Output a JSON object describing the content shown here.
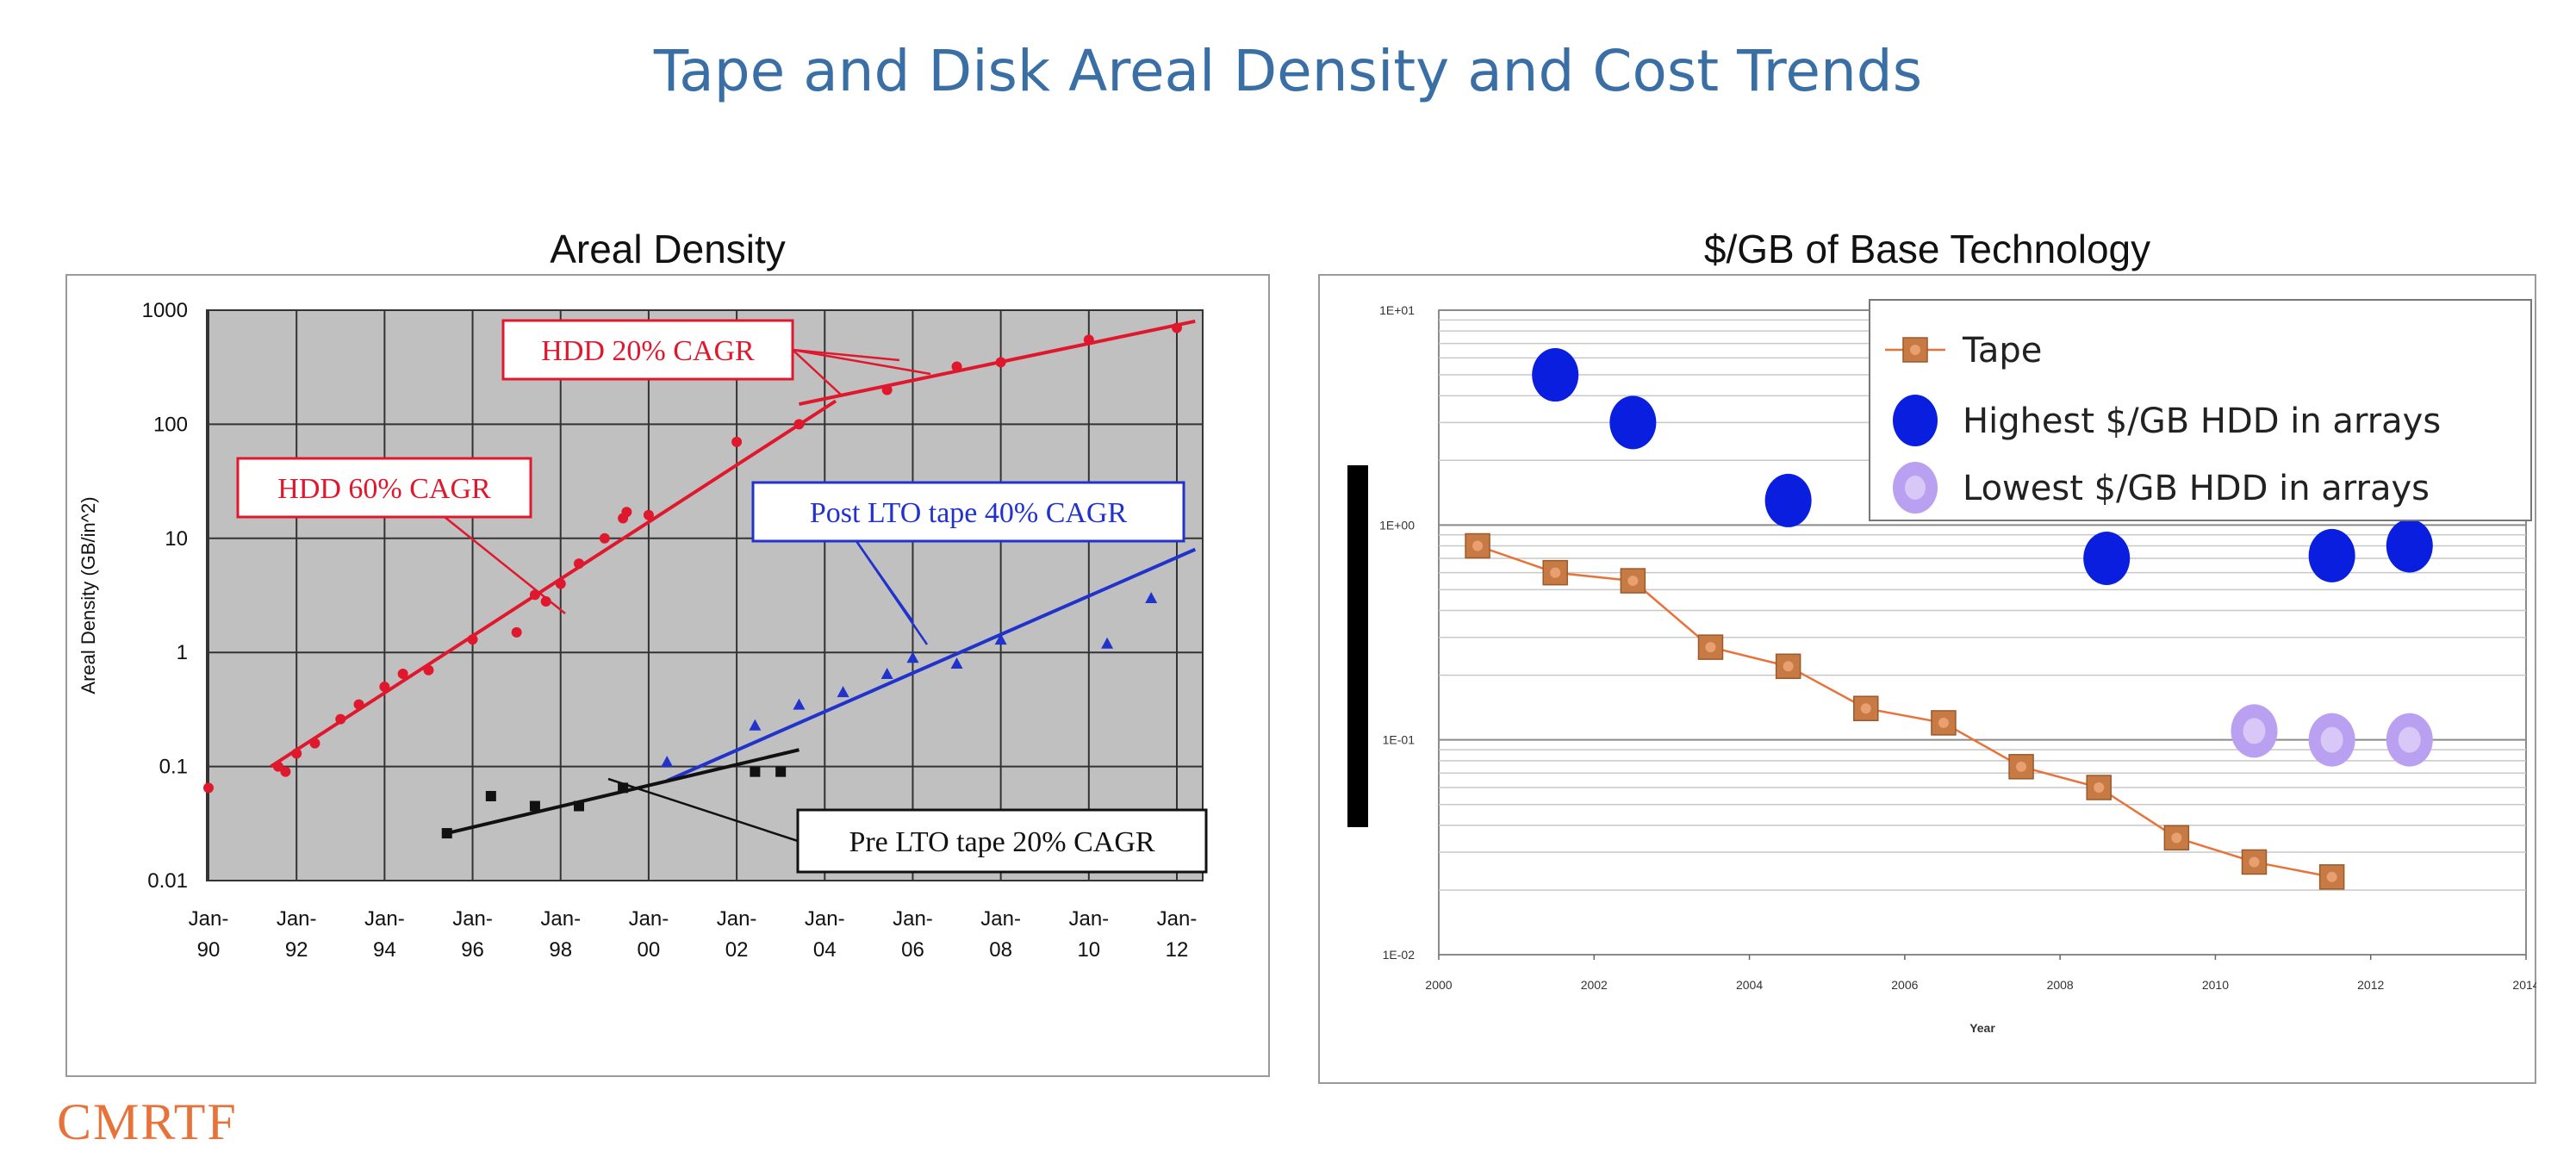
{
  "slide_title": "Tape and Disk Areal Density and Cost Trends",
  "footer_text": "CMRTF",
  "colors": {
    "title": "#3a6fa6",
    "hdd_red": "#e0182d",
    "post_lto_blue": "#2233cc",
    "pre_lto_black": "#111111",
    "tape_orange": "#e8733a",
    "highest_hdd": "#0a1ee0",
    "lowest_hdd": "#b9a0f0"
  },
  "chart_data": [
    {
      "type": "scatter",
      "title": "Areal Density",
      "xlabel": "",
      "ylabel": "Areal Density (GB/in^2)",
      "y_scale": "log",
      "ylim": [
        0.01,
        1000
      ],
      "y_ticks": [
        "0.01",
        "0.1",
        "1",
        "10",
        "100",
        "1000"
      ],
      "x_tick_labels": [
        [
          "Jan-",
          "90"
        ],
        [
          "Jan-",
          "92"
        ],
        [
          "Jan-",
          "94"
        ],
        [
          "Jan-",
          "96"
        ],
        [
          "Jan-",
          "98"
        ],
        [
          "Jan-",
          "00"
        ],
        [
          "Jan-",
          "02"
        ],
        [
          "Jan-",
          "04"
        ],
        [
          "Jan-",
          "06"
        ],
        [
          "Jan-",
          "08"
        ],
        [
          "Jan-",
          "10"
        ],
        [
          "Jan-",
          "12"
        ]
      ],
      "grid": true,
      "series": [
        {
          "name": "HDD",
          "color": "#e0182d",
          "points": [
            [
              "1990-01",
              0.065
            ],
            [
              "1991-08",
              0.1
            ],
            [
              "1991-10",
              0.09
            ],
            [
              "1992-01",
              0.13
            ],
            [
              "1992-06",
              0.16
            ],
            [
              "1993-01",
              0.26
            ],
            [
              "1993-06",
              0.35
            ],
            [
              "1994-01",
              0.5
            ],
            [
              "1994-06",
              0.65
            ],
            [
              "1995-01",
              0.7
            ],
            [
              "1996-01",
              1.3
            ],
            [
              "1997-01",
              1.5
            ],
            [
              "1997-06",
              3.2
            ],
            [
              "1997-09",
              2.8
            ],
            [
              "1998-01",
              4
            ],
            [
              "1998-06",
              6
            ],
            [
              "1999-01",
              10
            ],
            [
              "1999-06",
              15
            ],
            [
              "1999-07",
              17
            ],
            [
              "2000-01",
              16
            ],
            [
              "2002-01",
              70
            ],
            [
              "2003-06",
              100
            ],
            [
              "2005-06",
              200
            ],
            [
              "2007-01",
              320
            ],
            [
              "2008-01",
              350
            ],
            [
              "2010-01",
              550
            ],
            [
              "2012-01",
              700
            ]
          ],
          "trend_60": [
            [
              "1991-06",
              0.1
            ],
            [
              "2004-04",
              160
            ]
          ],
          "trend_20": [
            [
              "2003-06",
              150
            ],
            [
              "2012-06",
              800
            ]
          ]
        },
        {
          "name": "Post LTO tape",
          "color": "#2233cc",
          "points": [
            [
              "2000-06",
              0.11
            ],
            [
              "2002-06",
              0.23
            ],
            [
              "2003-06",
              0.35
            ],
            [
              "2004-06",
              0.45
            ],
            [
              "2005-06",
              0.65
            ],
            [
              "2006-01",
              0.9
            ],
            [
              "2007-01",
              0.8
            ],
            [
              "2008-01",
              1.3
            ],
            [
              "2010-06",
              1.2
            ],
            [
              "2011-06",
              3
            ]
          ],
          "trend": [
            [
              "2000-06",
              0.075
            ],
            [
              "2012-06",
              8
            ]
          ]
        },
        {
          "name": "Pre LTO tape",
          "color": "#111111",
          "points": [
            [
              "1995-06",
              0.026
            ],
            [
              "1996-06",
              0.055
            ],
            [
              "1997-06",
              0.045
            ],
            [
              "1998-06",
              0.045
            ],
            [
              "1999-06",
              0.065
            ],
            [
              "2002-06",
              0.09
            ],
            [
              "2003-01",
              0.09
            ]
          ],
          "trend": [
            [
              "1995-06",
              0.026
            ],
            [
              "2003-06",
              0.14
            ]
          ]
        }
      ],
      "annotations": [
        {
          "text": "HDD 20% CAGR",
          "color": "#e0182d"
        },
        {
          "text": "HDD 60% CAGR",
          "color": "#e0182d"
        },
        {
          "text": "Post LTO tape 40% CAGR",
          "color": "#2233cc"
        },
        {
          "text": "Pre LTO tape 20% CAGR",
          "color": "#111111"
        }
      ]
    },
    {
      "type": "scatter",
      "title": "$/GB of Base Technology",
      "xlabel": "Year",
      "ylabel": "",
      "y_scale": "log",
      "ylim": [
        0.01,
        10
      ],
      "y_ticks": [
        "1E-02",
        "1E-01",
        "1E+00",
        "1E+01"
      ],
      "xlim": [
        2000,
        2014
      ],
      "x_ticks": [
        "2000",
        "2002",
        "2004",
        "2006",
        "2008",
        "2010",
        "2012",
        "2014"
      ],
      "grid": true,
      "legend_position": "top-right",
      "series": [
        {
          "name": "Tape",
          "color": "#e8733a",
          "x": [
            2000.5,
            2001.5,
            2002.5,
            2003.5,
            2004.5,
            2005.5,
            2006.5,
            2007.5,
            2008.5,
            2009.5,
            2010.5,
            2011.5
          ],
          "values": [
            0.8,
            0.6,
            0.55,
            0.27,
            0.22,
            0.14,
            0.12,
            0.075,
            0.06,
            0.035,
            0.027,
            0.023
          ]
        },
        {
          "name": "Highest $/GB HDD in arrays",
          "color": "#0a1ee0",
          "x": [
            2001.5,
            2002.5,
            2004.5,
            2008.6,
            2011.5,
            2012.5
          ],
          "values": [
            5,
            3,
            1.3,
            0.7,
            0.72,
            0.8
          ]
        },
        {
          "name": "Lowest $/GB HDD in arrays",
          "color": "#b9a0f0",
          "x": [
            2010.5,
            2011.5,
            2012.5
          ],
          "values": [
            0.11,
            0.1,
            0.1
          ]
        }
      ]
    }
  ]
}
